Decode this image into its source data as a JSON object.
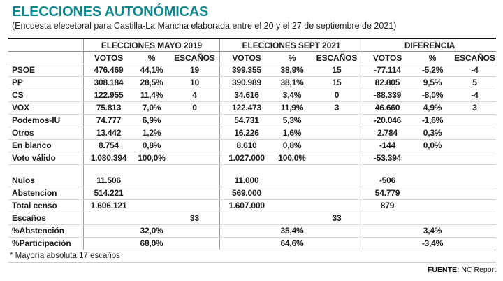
{
  "header": {
    "title": "ELECCIONES AUTONÓMICAS",
    "subtitle": "(Encuesta elecetoral para Castilla-La Mancha elaborada entre el 20 y el 27 de septiembre de 2021)"
  },
  "chart_data": {
    "type": "table",
    "title": "ELECCIONES AUTONÓMICAS",
    "subtitle": "(Encuesta elecetoral para Castilla-La Mancha elaborada entre el 20 y el 27 de septiembre de 2021)",
    "column_groups": [
      "ELECCIONES MAYO 2019",
      "ELECCIONES SEPT 2021",
      "DIFERENCIA"
    ],
    "sub_columns": [
      "VOTOS",
      "%",
      "ESCAÑOS"
    ],
    "rows": [
      {
        "label": "PSOE",
        "values": [
          "476.469",
          "44,1%",
          "19",
          "399.355",
          "38,9%",
          "15",
          "-77.114",
          "-5,2%",
          "-4"
        ]
      },
      {
        "label": "PP",
        "values": [
          "308.184",
          "28,5%",
          "10",
          "390.989",
          "38,1%",
          "15",
          "82.805",
          "9,5%",
          "5"
        ]
      },
      {
        "label": "CS",
        "values": [
          "122.955",
          "11,4%",
          "4",
          "34.616",
          "3,4%",
          "0",
          "-88.339",
          "-8,0%",
          "-4"
        ]
      },
      {
        "label": "VOX",
        "values": [
          "75.813",
          "7,0%",
          "0",
          "122.473",
          "11,9%",
          "3",
          "46.660",
          "4,9%",
          "3"
        ]
      },
      {
        "label": "Podemos-IU",
        "values": [
          "74.777",
          "6,9%",
          "",
          "54.731",
          "5,3%",
          "",
          "-20.046",
          "-1,6%",
          ""
        ]
      },
      {
        "label": "Otros",
        "values": [
          "13.442",
          "1,2%",
          "",
          "16.226",
          "1,6%",
          "",
          "2.784",
          "0,3%",
          ""
        ]
      },
      {
        "label": "En blanco",
        "values": [
          "8.754",
          "0,8%",
          "",
          "8.610",
          "0,8%",
          "",
          "-144",
          "0,0%",
          ""
        ]
      },
      {
        "label": "Voto válido",
        "values": [
          "1.080.394",
          "100,0%",
          "",
          "1.027.000",
          "100,0%",
          "",
          "-53.394",
          "",
          ""
        ]
      }
    ],
    "summary_rows": [
      {
        "label": "Nulos",
        "values": [
          "11.506",
          "",
          "",
          "11.000",
          "",
          "",
          "-506",
          "",
          ""
        ]
      },
      {
        "label": "Abstencion",
        "values": [
          "514.221",
          "",
          "",
          "569.000",
          "",
          "",
          "54.779",
          "",
          ""
        ]
      },
      {
        "label": "Total censo",
        "values": [
          "1.606.121",
          "",
          "",
          "1.607.000",
          "",
          "",
          "879",
          "",
          ""
        ]
      },
      {
        "label": "Escaños",
        "values": [
          "",
          "",
          "33",
          "",
          "",
          "33",
          "",
          "",
          ""
        ]
      },
      {
        "label": "%Abstención",
        "values": [
          "",
          "32,0%",
          "",
          "",
          "35,4%",
          "",
          "",
          "3,4%",
          ""
        ]
      },
      {
        "label": "%Participación",
        "values": [
          "",
          "68,0%",
          "",
          "",
          "64,6%",
          "",
          "",
          "-3,4%",
          ""
        ]
      }
    ],
    "footnote": "* Mayoría absoluta 17 escaños"
  },
  "footer": {
    "source_label": "FUENTE:",
    "source_value": " NC Report"
  },
  "colors": {
    "accent": "#0E868C",
    "text": "#1C1C1C"
  }
}
